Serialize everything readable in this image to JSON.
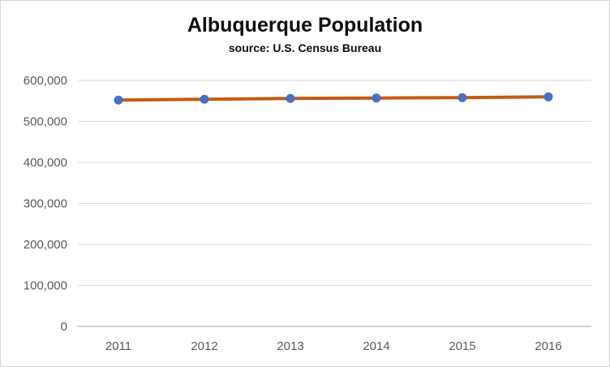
{
  "chart_data": {
    "type": "line",
    "title": "Albuquerque Population",
    "subtitle": "source: U.S. Census Bureau",
    "categories": [
      "2011",
      "2012",
      "2013",
      "2014",
      "2015",
      "2016"
    ],
    "values": [
      552000,
      554000,
      556000,
      557000,
      558000,
      560000
    ],
    "xlabel": "",
    "ylabel": "",
    "ylim": [
      0,
      600000
    ],
    "ytick_step": 100000,
    "ytick_labels": [
      "0",
      "100,000",
      "200,000",
      "300,000",
      "400,000",
      "500,000",
      "600,000"
    ],
    "grid": true,
    "legend_position": "none",
    "colors": {
      "line": "#C55A11",
      "marker": "#4472C4",
      "axis_text": "#595959",
      "gridline": "#D9D9D9",
      "axis_line": "#BFBFBF",
      "title_text": "#0D0D0D"
    }
  }
}
